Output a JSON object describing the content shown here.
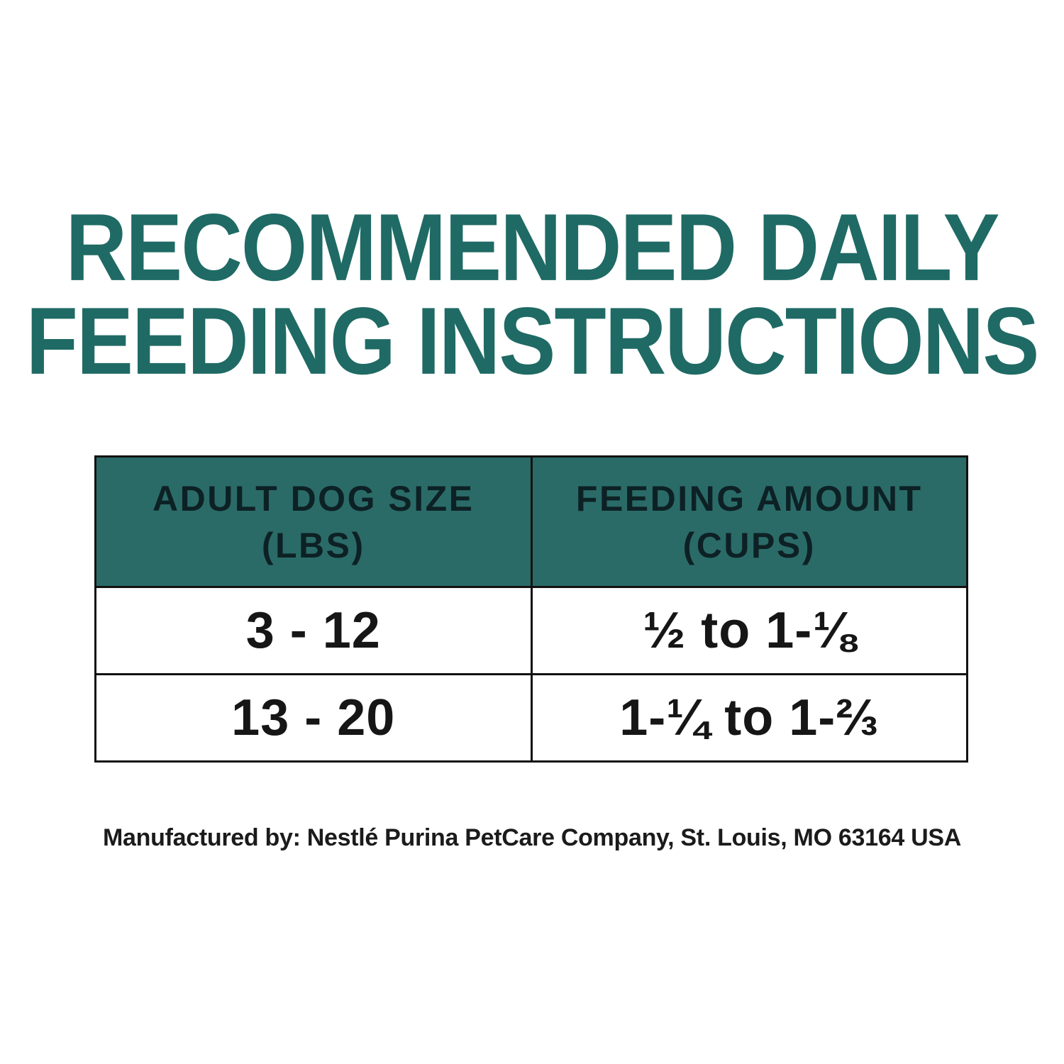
{
  "page": {
    "background": "#ffffff"
  },
  "title": {
    "line1": "RECOMMENDED DAILY",
    "line2": "FEEDING INSTRUCTIONS",
    "color": "#1F6A64"
  },
  "table": {
    "header_bg": "#2A6B68",
    "header_text_color": "#0D2125",
    "border_color": "#121212",
    "columns": [
      {
        "label_line1": "ADULT DOG SIZE",
        "label_line2": "(LBS)"
      },
      {
        "label_line1": "FEEDING AMOUNT",
        "label_line2": "(CUPS)"
      }
    ],
    "rows": [
      {
        "size": "3 - 12",
        "amount": "½ to 1-⅛"
      },
      {
        "size": "13 - 20",
        "amount": "1-¼ to 1-⅔"
      }
    ]
  },
  "footer": {
    "text": "Manufactured by: Nestlé Purina PetCare Company, St. Louis, MO 63164 USA"
  }
}
